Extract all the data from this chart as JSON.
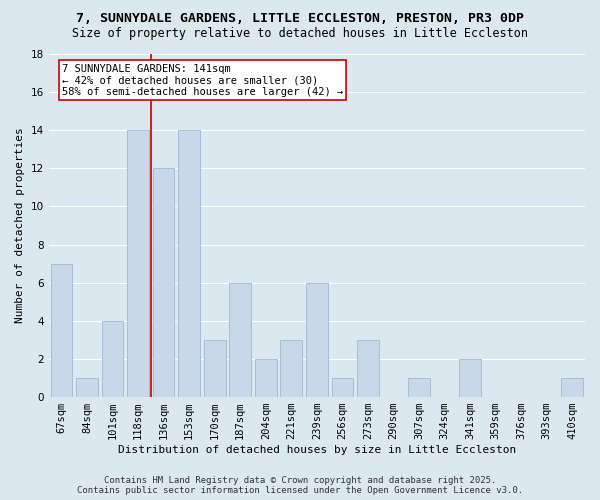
{
  "title": "7, SUNNYDALE GARDENS, LITTLE ECCLESTON, PRESTON, PR3 0DP",
  "subtitle": "Size of property relative to detached houses in Little Eccleston",
  "xlabel": "Distribution of detached houses by size in Little Eccleston",
  "ylabel": "Number of detached properties",
  "categories": [
    "67sqm",
    "84sqm",
    "101sqm",
    "118sqm",
    "136sqm",
    "153sqm",
    "170sqm",
    "187sqm",
    "204sqm",
    "221sqm",
    "239sqm",
    "256sqm",
    "273sqm",
    "290sqm",
    "307sqm",
    "324sqm",
    "341sqm",
    "359sqm",
    "376sqm",
    "393sqm",
    "410sqm"
  ],
  "values": [
    7,
    1,
    4,
    14,
    12,
    14,
    3,
    6,
    2,
    3,
    6,
    1,
    3,
    0,
    1,
    0,
    2,
    0,
    0,
    0,
    1
  ],
  "ylim": [
    0,
    18
  ],
  "yticks": [
    0,
    2,
    4,
    6,
    8,
    10,
    12,
    14,
    16,
    18
  ],
  "bar_color": "#c8d8e8",
  "bar_edge_color": "#a0b8d0",
  "vline_pos": 3.5,
  "vline_color": "#cc0000",
  "annotation_text": "7 SUNNYDALE GARDENS: 141sqm\n← 42% of detached houses are smaller (30)\n58% of semi-detached houses are larger (42) →",
  "annotation_box_color": "#ffffff",
  "annotation_box_edge": "#cc0000",
  "bg_color": "#dce8f0",
  "footer1": "Contains HM Land Registry data © Crown copyright and database right 2025.",
  "footer2": "Contains public sector information licensed under the Open Government Licence v3.0.",
  "title_fontsize": 9.5,
  "subtitle_fontsize": 8.5,
  "axis_label_fontsize": 8,
  "tick_fontsize": 7.5,
  "annotation_fontsize": 7.5,
  "footer_fontsize": 6.5
}
